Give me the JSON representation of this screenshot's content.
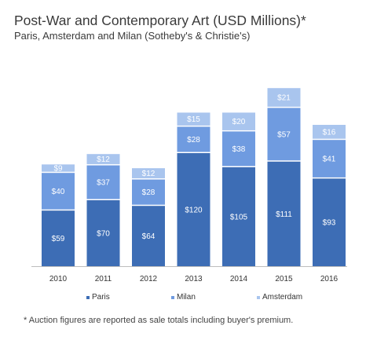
{
  "title": "Post-War and Contemporary Art (USD Millions)*",
  "subtitle": "Paris, Amsterdam and Milan (Sotheby's & Christie's)",
  "footnote": "* Auction figures are reported as sale totals including buyer's premium.",
  "chart_data": {
    "type": "bar",
    "stacked": true,
    "categories": [
      "2010",
      "2011",
      "2012",
      "2013",
      "2014",
      "2015",
      "2016"
    ],
    "series": [
      {
        "name": "Paris",
        "color": "#3d6db5",
        "values": [
          59,
          70,
          64,
          120,
          105,
          111,
          93
        ],
        "labels": [
          "$59",
          "$70",
          "$64",
          "$120",
          "$105",
          "$111",
          "$93"
        ]
      },
      {
        "name": "Milan",
        "color": "#6f9be0",
        "values": [
          40,
          37,
          28,
          28,
          38,
          57,
          41
        ],
        "labels": [
          "$40",
          "$37",
          "$28",
          "$28",
          "$38",
          "$57",
          "$41"
        ]
      },
      {
        "name": "Amsterdam",
        "color": "#a9c5ee",
        "values": [
          9,
          12,
          12,
          15,
          20,
          21,
          16
        ],
        "labels": [
          "$9",
          "$12",
          "$12",
          "$15",
          "$20",
          "$21",
          "$16"
        ]
      }
    ],
    "ylim": [
      0,
      200
    ],
    "grid": false,
    "legend_position": "bottom"
  }
}
